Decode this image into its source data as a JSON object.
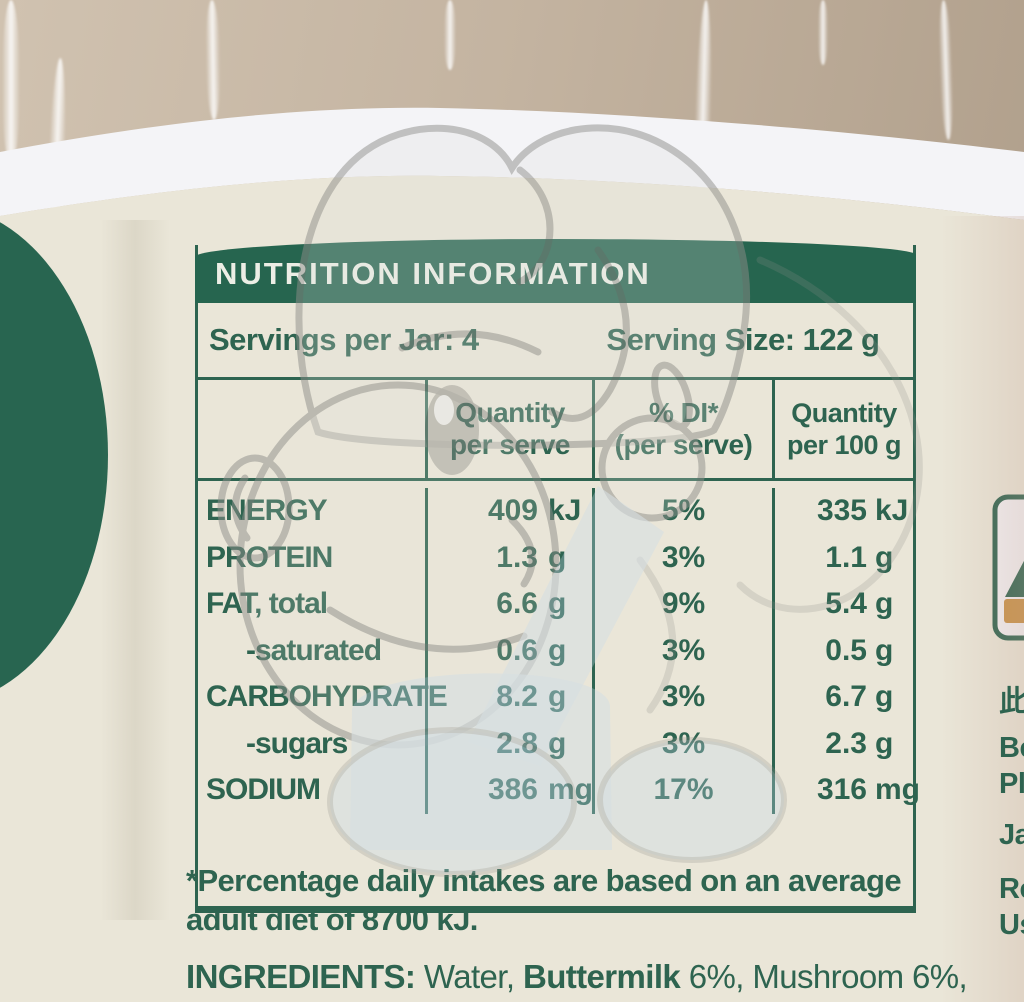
{
  "banner": {
    "title": "NUTRITION INFORMATION"
  },
  "serving": {
    "servings_text": "Servings per Jar: 4",
    "size_text": "Serving Size: 122 g"
  },
  "table": {
    "col_headers": [
      {
        "line1": "Quantity",
        "line2": "per serve"
      },
      {
        "line1": "% DI*",
        "line2": "(per serve)"
      },
      {
        "line1": "Quantity",
        "line2": "per 100 g"
      }
    ],
    "rows": [
      {
        "label": "ENERGY",
        "indent": false,
        "serve": {
          "num": "409",
          "unit": "kJ"
        },
        "di": "5%",
        "per100": {
          "num": "335",
          "unit": "kJ"
        }
      },
      {
        "label": "PROTEIN",
        "indent": false,
        "serve": {
          "num": "1.3",
          "unit": "g"
        },
        "di": "3%",
        "per100": {
          "num": "1.1",
          "unit": "g"
        }
      },
      {
        "label": "FAT, total",
        "indent": false,
        "serve": {
          "num": "6.6",
          "unit": "g"
        },
        "di": "9%",
        "per100": {
          "num": "5.4",
          "unit": "g"
        }
      },
      {
        "label": "-saturated",
        "indent": true,
        "serve": {
          "num": "0.6",
          "unit": "g"
        },
        "di": "3%",
        "per100": {
          "num": "0.5",
          "unit": "g"
        }
      },
      {
        "label": "CARBOHYDRATE",
        "indent": false,
        "serve": {
          "num": "8.2",
          "unit": "g"
        },
        "di": "3%",
        "per100": {
          "num": "6.7",
          "unit": "g"
        }
      },
      {
        "label": "-sugars",
        "indent": true,
        "serve": {
          "num": "2.8",
          "unit": "g"
        },
        "di": "3%",
        "per100": {
          "num": "2.3",
          "unit": "g"
        }
      },
      {
        "label": "SODIUM",
        "indent": false,
        "serve": {
          "num": "386",
          "unit": "mg"
        },
        "di": "17%",
        "per100": {
          "num": "316",
          "unit": "mg"
        }
      }
    ]
  },
  "footnote": {
    "line1": "*Percentage daily intakes are based on an average",
    "line2": "adult diet of 8700 kJ."
  },
  "ingredients": {
    "bold1": "INGREDIENTS:",
    "normal1": " Water, ",
    "bold2": "Buttermilk",
    "normal2": " 6%, Mushroom 6%,"
  },
  "right_panel_fragments": [
    "此",
    "Be",
    "Ple",
    "Jar",
    "Re",
    "Us"
  ],
  "colors": {
    "banner-green": "#26654f",
    "text-green": "#2e6450",
    "blob-green": "#286550",
    "wm-blue": "#c3d9ec",
    "icon-orange": "#c89147",
    "label-cream": "#eae6d8",
    "band-white": "#f4f4f7",
    "plastic-tan": "#c4b4a1"
  }
}
